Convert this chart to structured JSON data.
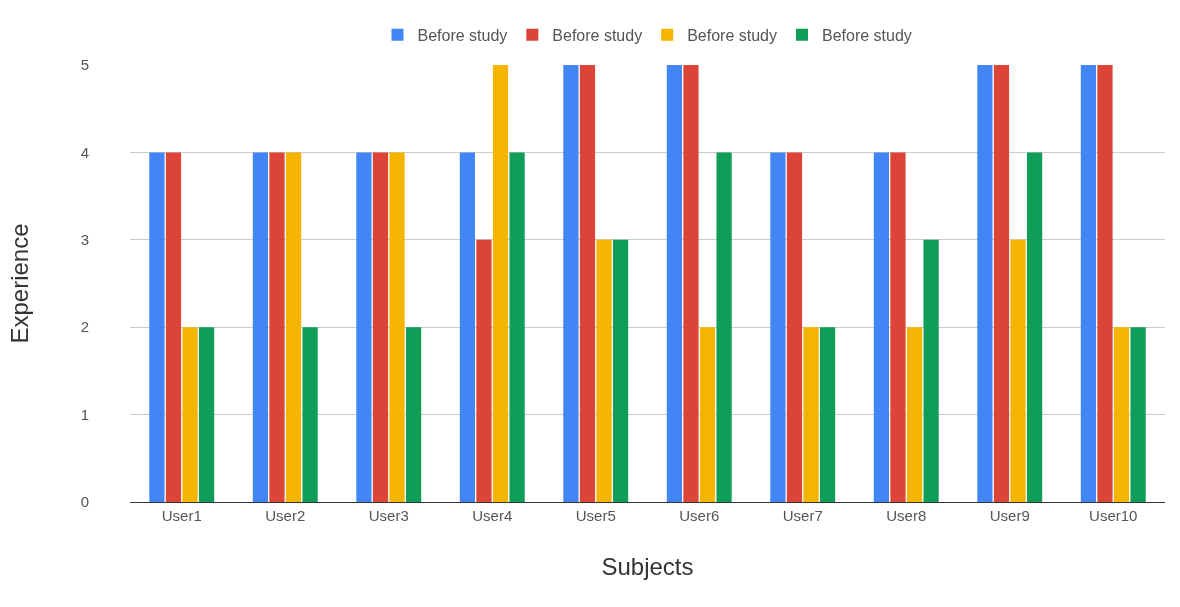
{
  "chart_data": {
    "type": "bar",
    "xlabel": "Subjects",
    "ylabel": "Experience",
    "categories": [
      "User1",
      "User2",
      "User3",
      "User4",
      "User5",
      "User6",
      "User7",
      "User8",
      "User9",
      "User10"
    ],
    "series": [
      {
        "name": "Before study",
        "color": "#4285f4",
        "values": [
          4,
          4,
          4,
          4,
          5,
          5,
          4,
          4,
          5,
          5
        ]
      },
      {
        "name": "Before study",
        "color": "#db4437",
        "values": [
          4,
          4,
          4,
          3,
          5,
          5,
          4,
          4,
          5,
          5
        ]
      },
      {
        "name": "Before study",
        "color": "#f4b400",
        "values": [
          2,
          4,
          4,
          5,
          3,
          2,
          2,
          2,
          3,
          2
        ]
      },
      {
        "name": "Before study",
        "color": "#0f9d58",
        "values": [
          2,
          2,
          2,
          4,
          3,
          4,
          2,
          3,
          4,
          2
        ]
      }
    ],
    "ylim": [
      0,
      5
    ],
    "yticks": [
      0,
      1,
      2,
      3,
      4,
      5
    ],
    "grid": "y",
    "legend": "top"
  }
}
